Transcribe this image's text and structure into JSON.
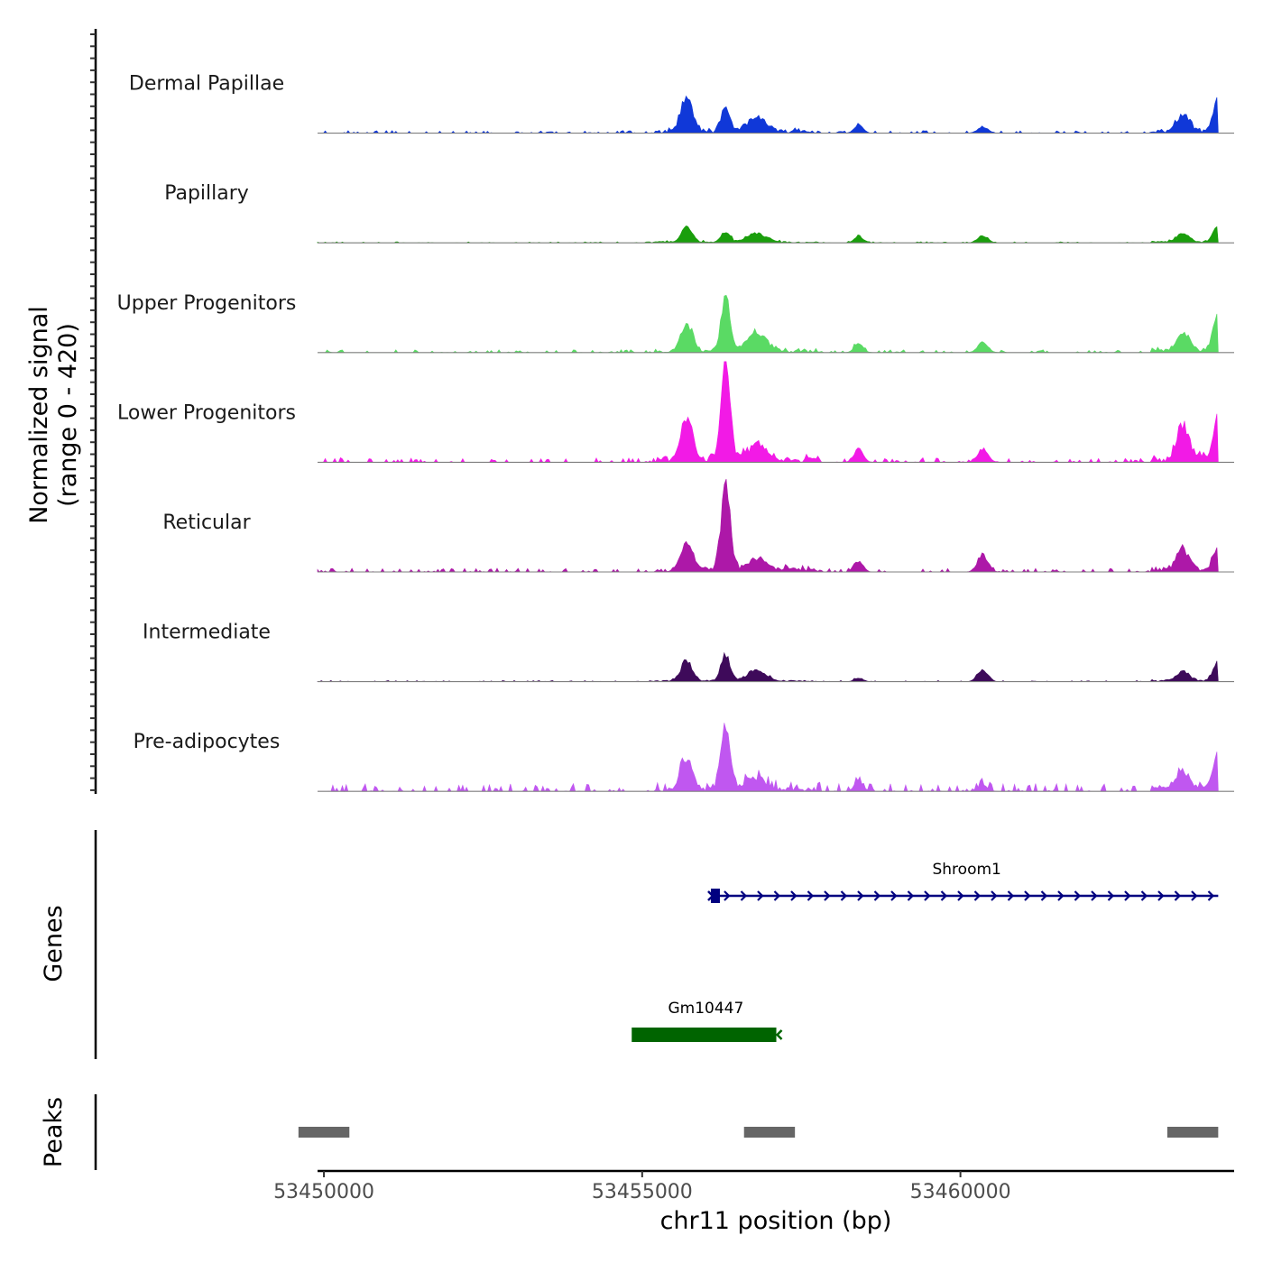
{
  "chart_data": {
    "type": "area",
    "title": "",
    "chromosome": "chr11",
    "xlabel": "chr11 position (bp)",
    "ylabel_line1": "Normalized signal",
    "ylabel_line2": "(range 0 - 420)",
    "y_range": [
      0,
      420
    ],
    "xlim": [
      53449900,
      53464300
    ],
    "x_ticks": [
      53450000,
      53455000,
      53460000
    ],
    "x_tick_labels": [
      "53450000",
      "53455000",
      "53460000"
    ],
    "genes_label": "Genes",
    "peaks_label": "Peaks",
    "tracks": [
      {
        "name": "Dermal Papillae",
        "color": "#1038d8",
        "scale": 0.78
      },
      {
        "name": "Papillary",
        "color": "#1a9e0c",
        "scale": 0.35
      },
      {
        "name": "Upper Progenitors",
        "color": "#5ada64",
        "scale": 0.81
      },
      {
        "name": "Lower Progenitors",
        "color": "#f21ae6",
        "scale": 1.3
      },
      {
        "name": "Reticular",
        "color": "#ad18a8",
        "scale": 1.05
      },
      {
        "name": "Intermediate",
        "color": "#3e0a5a",
        "scale": 0.35
      },
      {
        "name": "Pre-adipocytes",
        "color": "#c057f0",
        "scale": 1.0
      }
    ],
    "signal_peaks": [
      {
        "center": 53455700,
        "width": 90,
        "name": "p1"
      },
      {
        "center": 53456310,
        "width": 70,
        "name": "p2"
      },
      {
        "center": 53456800,
        "width": 150,
        "name": "p3"
      },
      {
        "center": 53458400,
        "width": 70,
        "name": "p4"
      },
      {
        "center": 53460350,
        "width": 80,
        "name": "p5"
      },
      {
        "center": 53463500,
        "width": 100,
        "name": "p6"
      },
      {
        "center": 53464050,
        "width": 80,
        "name": "p7"
      }
    ],
    "peak_heights": [
      [
        0.45,
        0.3,
        0.18,
        0.1,
        0.08,
        0.22,
        0.42
      ],
      [
        0.4,
        0.3,
        0.25,
        0.18,
        0.2,
        0.25,
        0.42
      ],
      [
        0.35,
        0.65,
        0.22,
        0.1,
        0.12,
        0.22,
        0.42
      ],
      [
        0.33,
        0.82,
        0.12,
        0.1,
        0.1,
        0.25,
        0.33
      ],
      [
        0.25,
        0.82,
        0.1,
        0.1,
        0.17,
        0.2,
        0.22
      ],
      [
        0.55,
        0.75,
        0.3,
        0.1,
        0.35,
        0.25,
        0.55
      ],
      [
        0.33,
        0.67,
        0.12,
        0.1,
        0.06,
        0.18,
        0.35
      ]
    ],
    "genes": [
      {
        "name": "Shroom1",
        "start": 53456150,
        "end": 53464050,
        "strand": "+",
        "color": "#000080"
      },
      {
        "name": "Gm10447",
        "start": 53454850,
        "end": 53457150,
        "strand": "-",
        "color": "#006400"
      }
    ],
    "peak_regions": [
      {
        "start": 53449600,
        "end": 53450400
      },
      {
        "start": 53456600,
        "end": 53457400
      },
      {
        "start": 53463250,
        "end": 53464050
      }
    ],
    "peak_color": "#666666"
  }
}
